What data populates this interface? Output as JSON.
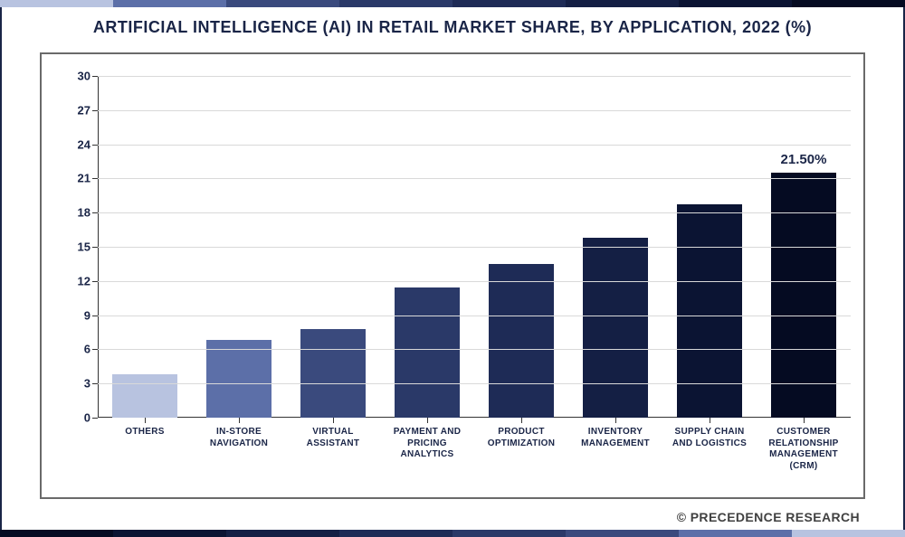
{
  "title": "ARTIFICIAL INTELLIGENCE (AI) IN RETAIL MARKET SHARE, BY APPLICATION, 2022 (%)",
  "footer_credit": "© PRECEDENCE RESEARCH",
  "stripe_colors": [
    "#b8c3e0",
    "#5c6fa8",
    "#3a4a7d",
    "#2a3968",
    "#1e2b56",
    "#141f44",
    "#0b1433",
    "#050b22"
  ],
  "chart": {
    "type": "bar",
    "ylim": [
      0,
      30
    ],
    "ytick_step": 3,
    "yticks": [
      0,
      3,
      6,
      9,
      12,
      15,
      18,
      21,
      24,
      27,
      30
    ],
    "grid_color": "#d9d9d9",
    "axis_color": "#333333",
    "label_color": "#1a2547",
    "bar_width": 0.7,
    "background_color": "#ffffff",
    "categories": [
      "OTHERS",
      "IN-STORE NAVIGATION",
      "VIRTUAL ASSISTANT",
      "PAYMENT AND PRICING ANALYTICS",
      "PRODUCT OPTIMIZATION",
      "INVENTORY MANAGEMENT",
      "SUPPLY CHAIN AND LOGISTICS",
      "CUSTOMER RELATIONSHIP MANAGEMENT (CRM)"
    ],
    "values": [
      3.8,
      6.8,
      7.8,
      11.4,
      13.5,
      15.8,
      18.7,
      21.5
    ],
    "bar_colors": [
      "#b8c3e0",
      "#5c6fa8",
      "#3a4a7d",
      "#2a3968",
      "#1e2b56",
      "#141f44",
      "#0b1433",
      "#050b22"
    ],
    "value_labels": [
      "",
      "",
      "",
      "",
      "",
      "",
      "",
      "21.50%"
    ],
    "tick_fontsize": 13,
    "xlabel_fontsize": 10,
    "title_fontsize": 18
  }
}
